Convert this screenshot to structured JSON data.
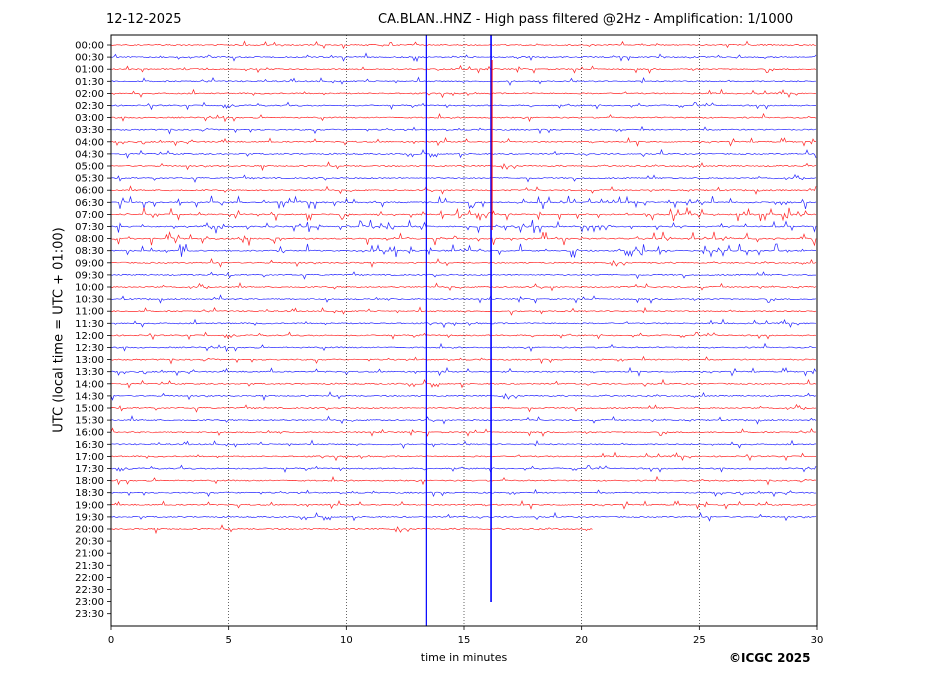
{
  "header": {
    "date": "12-12-2025",
    "title": "CA.BLAN..HNZ - High pass filtered @2Hz - Amplification: 1/1000"
  },
  "footer": {
    "copyright": "©ICGC 2025"
  },
  "chart_data": {
    "type": "line",
    "title": "CA.BLAN..HNZ - High pass filtered @2Hz - Amplification: 1/1000",
    "xlabel": "time in minutes",
    "ylabel": "UTC (local time = UTC + 01:00)",
    "xlim": [
      0,
      30
    ],
    "x_ticks": [
      "0",
      "5",
      "10",
      "15",
      "20",
      "25",
      "30"
    ],
    "y_ticks": [
      "00:00",
      "00:30",
      "01:00",
      "01:30",
      "02:00",
      "02:30",
      "03:00",
      "03:30",
      "04:00",
      "04:30",
      "05:00",
      "05:30",
      "06:00",
      "06:30",
      "07:00",
      "07:30",
      "08:00",
      "08:30",
      "09:00",
      "09:30",
      "10:00",
      "10:30",
      "11:00",
      "11:30",
      "12:00",
      "12:30",
      "13:00",
      "13:30",
      "14:00",
      "14:30",
      "15:00",
      "15:30",
      "16:00",
      "16:30",
      "17:00",
      "17:30",
      "18:00",
      "18:30",
      "19:00",
      "19:30",
      "20:00",
      "20:30",
      "21:00",
      "21:30",
      "22:00",
      "22:30",
      "23:00",
      "23:30"
    ],
    "grid_x": [
      5,
      10,
      15,
      20,
      25
    ],
    "trace_colors": [
      "#ff0000",
      "#0000ff"
    ],
    "last_trace_end_minute": 20.5,
    "trace_count": 41,
    "spike_minutes": [
      13.4,
      16.15
    ]
  }
}
